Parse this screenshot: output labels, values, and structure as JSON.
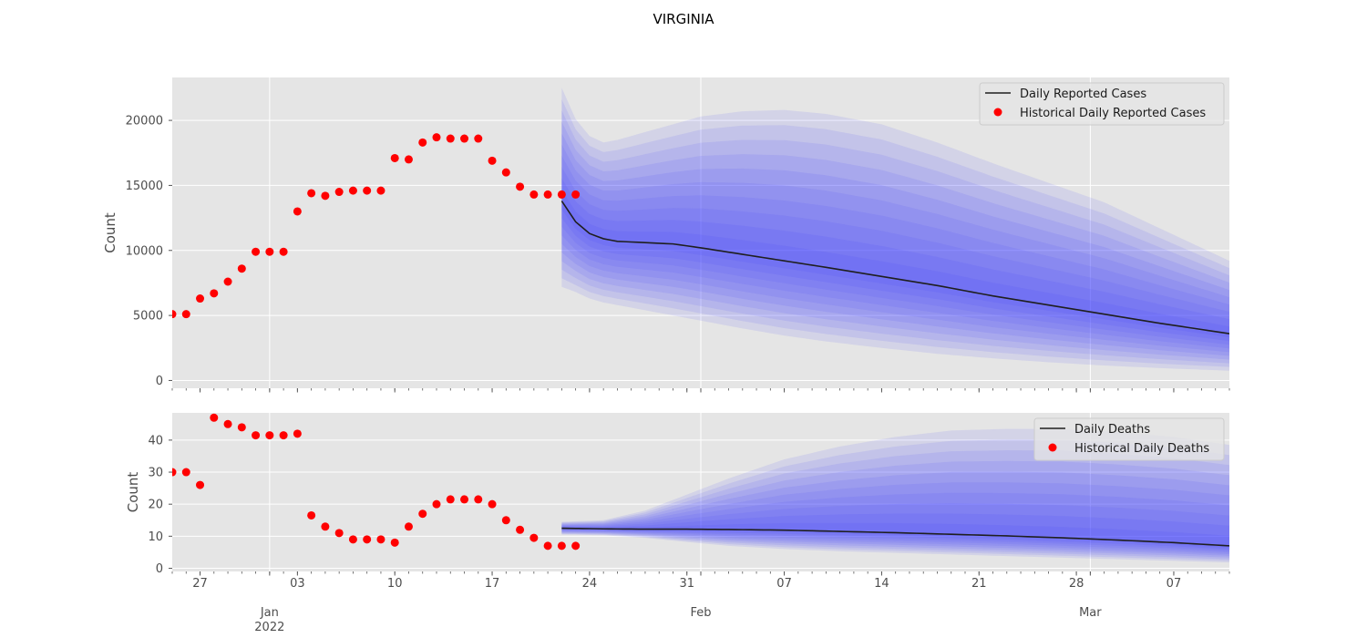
{
  "figure": {
    "title": "VIRGINIA"
  },
  "chart_data": [
    {
      "type": "line",
      "name": "cases",
      "title": "",
      "xlabel": "",
      "ylabel": "Count",
      "xlim": [
        "2021-12-25",
        "2022-03-11"
      ],
      "ylim": [
        -600,
        23300
      ],
      "yticks": [
        0,
        5000,
        10000,
        15000,
        20000
      ],
      "grid": true,
      "legend": {
        "position": "top-right",
        "entries": [
          "Daily Reported Cases",
          "Historical Daily Reported Cases"
        ]
      },
      "colors": {
        "line": "#1f1f1f",
        "points": "#ff0000",
        "band": "#3c3cff"
      },
      "historical": {
        "name": "Historical Daily Reported Cases",
        "x": [
          "2021-12-25",
          "2021-12-26",
          "2021-12-27",
          "2021-12-28",
          "2021-12-29",
          "2021-12-30",
          "2021-12-31",
          "2022-01-01",
          "2022-01-02",
          "2022-01-03",
          "2022-01-04",
          "2022-01-05",
          "2022-01-06",
          "2022-01-07",
          "2022-01-08",
          "2022-01-09",
          "2022-01-10",
          "2022-01-11",
          "2022-01-12",
          "2022-01-13",
          "2022-01-14",
          "2022-01-15",
          "2022-01-16",
          "2022-01-17",
          "2022-01-18",
          "2022-01-19",
          "2022-01-20",
          "2022-01-21",
          "2022-01-22",
          "2022-01-23"
        ],
        "y": [
          5100,
          5100,
          6300,
          6700,
          7600,
          8600,
          9900,
          9900,
          9900,
          13000,
          14400,
          14200,
          14500,
          14600,
          14600,
          14600,
          17100,
          17000,
          18300,
          18700,
          18600,
          18600,
          18600,
          16900,
          16000,
          14900,
          14300,
          14300,
          14300,
          14300
        ]
      },
      "forecast": {
        "name": "Daily Reported Cases",
        "x": [
          "2022-01-22",
          "2022-01-23",
          "2022-01-24",
          "2022-01-25",
          "2022-01-26",
          "2022-01-28",
          "2022-01-30",
          "2022-02-01",
          "2022-02-04",
          "2022-02-07",
          "2022-02-10",
          "2022-02-14",
          "2022-02-18",
          "2022-02-22",
          "2022-02-26",
          "2022-03-02",
          "2022-03-06",
          "2022-03-11"
        ],
        "median": [
          13800,
          12200,
          11300,
          10900,
          10700,
          10600,
          10500,
          10200,
          9700,
          9200,
          8700,
          8000,
          7300,
          6500,
          5800,
          5100,
          4400,
          3600
        ],
        "lower": [
          7200,
          6800,
          6300,
          6000,
          5800,
          5400,
          5000,
          4600,
          4000,
          3450,
          3000,
          2500,
          2050,
          1700,
          1400,
          1150,
          950,
          750
        ],
        "upper": [
          22500,
          20100,
          18800,
          18300,
          18500,
          19100,
          19700,
          20300,
          20700,
          20800,
          20500,
          19700,
          18300,
          16700,
          15200,
          13700,
          11700,
          9200
        ],
        "quantile_bands": 10
      }
    },
    {
      "type": "line",
      "name": "deaths",
      "title": "",
      "xlabel": "",
      "ylabel": "Count",
      "xlim": [
        "2021-12-25",
        "2022-03-11"
      ],
      "ylim": [
        -1,
        48.5
      ],
      "yticks": [
        0,
        10,
        20,
        30,
        40
      ],
      "grid": true,
      "legend": {
        "position": "top-right",
        "entries": [
          "Daily Deaths",
          "Historical Daily Deaths"
        ]
      },
      "colors": {
        "line": "#1f1f1f",
        "points": "#ff0000",
        "band": "#3c3cff"
      },
      "historical": {
        "name": "Historical Daily Deaths",
        "x": [
          "2021-12-25",
          "2021-12-26",
          "2021-12-27",
          "2021-12-28",
          "2021-12-29",
          "2021-12-30",
          "2021-12-31",
          "2022-01-01",
          "2022-01-02",
          "2022-01-03",
          "2022-01-04",
          "2022-01-05",
          "2022-01-06",
          "2022-01-07",
          "2022-01-08",
          "2022-01-09",
          "2022-01-10",
          "2022-01-11",
          "2022-01-12",
          "2022-01-13",
          "2022-01-14",
          "2022-01-15",
          "2022-01-16",
          "2022-01-17",
          "2022-01-18",
          "2022-01-19",
          "2022-01-20",
          "2022-01-21",
          "2022-01-22",
          "2022-01-23"
        ],
        "y": [
          30,
          30,
          26,
          47,
          45,
          44,
          41.5,
          41.5,
          41.5,
          42,
          16.5,
          13,
          11,
          9,
          9,
          9,
          8,
          13,
          17,
          20,
          21.5,
          21.5,
          21.5,
          20,
          15,
          12,
          9.5,
          7,
          7,
          7
        ]
      },
      "forecast": {
        "name": "Daily Deaths",
        "x": [
          "2022-01-22",
          "2022-01-25",
          "2022-01-28",
          "2022-01-31",
          "2022-02-03",
          "2022-02-07",
          "2022-02-11",
          "2022-02-15",
          "2022-02-19",
          "2022-02-23",
          "2022-02-27",
          "2022-03-03",
          "2022-03-07",
          "2022-03-11"
        ],
        "median": [
          12.5,
          12.3,
          12.2,
          12.2,
          12.1,
          11.9,
          11.5,
          11.1,
          10.6,
          10.1,
          9.5,
          8.8,
          8,
          7
        ],
        "lower": [
          10.5,
          10.3,
          9.5,
          8.2,
          7,
          6,
          5.3,
          4.8,
          4.3,
          3.8,
          3.3,
          2.8,
          2.3,
          1.8
        ],
        "upper": [
          14.5,
          15,
          18,
          23,
          28,
          34,
          38,
          41,
          43,
          43.5,
          43.5,
          42.5,
          41,
          38.5
        ],
        "quantile_bands": 10
      }
    }
  ],
  "xaxis": {
    "ticks": [
      {
        "date": "2021-12-27",
        "label": "27"
      },
      {
        "date": "2022-01-03",
        "label": "03"
      },
      {
        "date": "2022-01-10",
        "label": "10"
      },
      {
        "date": "2022-01-17",
        "label": "17"
      },
      {
        "date": "2022-01-24",
        "label": "24"
      },
      {
        "date": "2022-01-31",
        "label": "31"
      },
      {
        "date": "2022-02-07",
        "label": "07"
      },
      {
        "date": "2022-02-14",
        "label": "14"
      },
      {
        "date": "2022-02-21",
        "label": "21"
      },
      {
        "date": "2022-02-28",
        "label": "28"
      },
      {
        "date": "2022-03-07",
        "label": "07"
      }
    ],
    "months": [
      {
        "date": "2022-01-01",
        "label": "Jan",
        "year": "2022"
      },
      {
        "date": "2022-02-01",
        "label": "Feb",
        "year": ""
      },
      {
        "date": "2022-03-01",
        "label": "Mar",
        "year": ""
      }
    ]
  }
}
